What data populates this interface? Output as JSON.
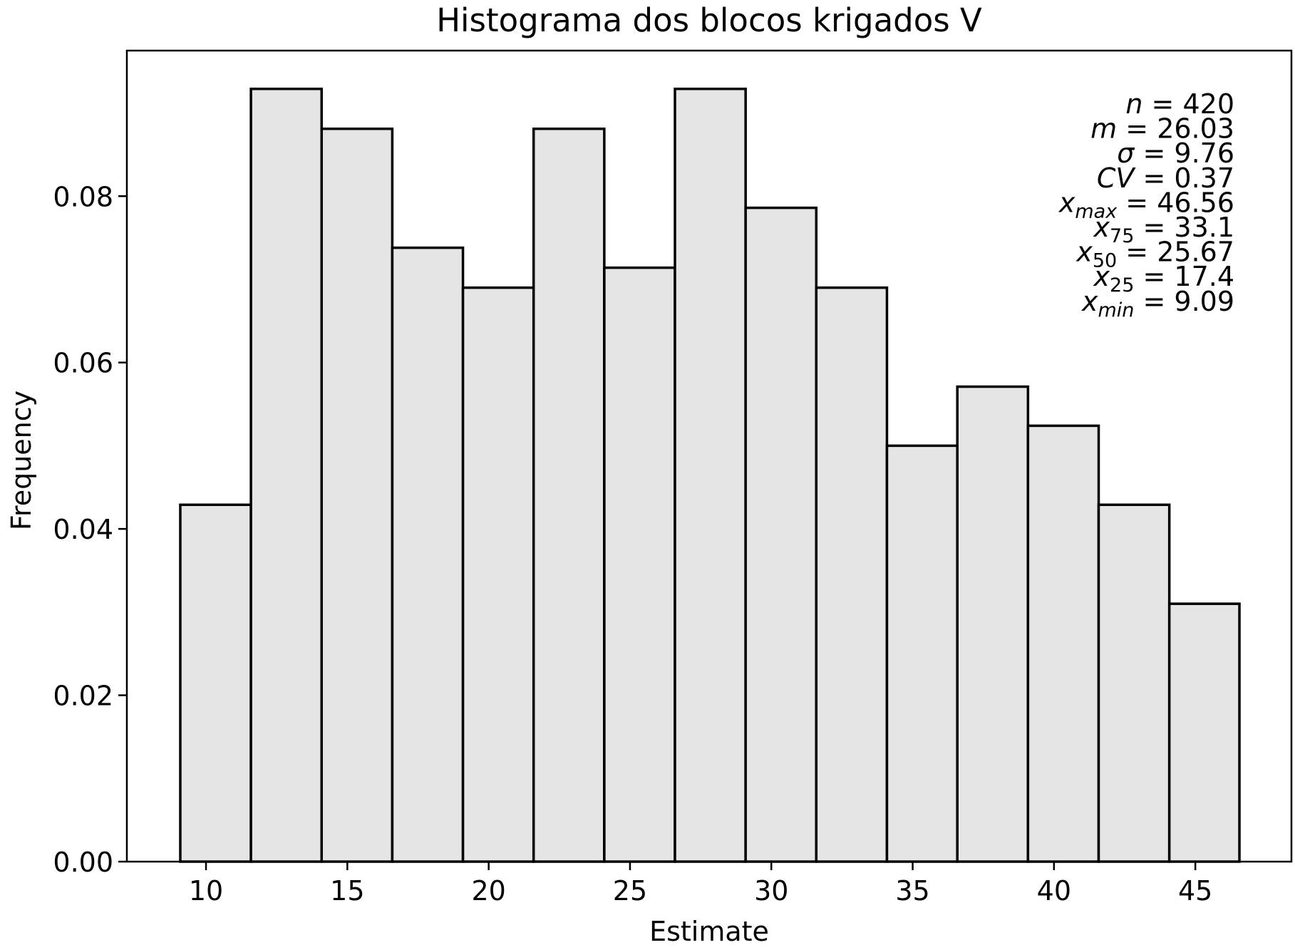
{
  "chart_data": {
    "type": "bar",
    "title": "Histograma dos blocos krigados V",
    "xlabel": "Estimate",
    "ylabel": "Frequency",
    "xlim": [
      7.2,
      48.4
    ],
    "ylim": [
      0,
      0.0975
    ],
    "xticks": [
      10,
      15,
      20,
      25,
      30,
      35,
      40,
      45
    ],
    "yticks": [
      0.0,
      0.02,
      0.04,
      0.06,
      0.08
    ],
    "xtick_labels": [
      "10",
      "15",
      "20",
      "25",
      "30",
      "35",
      "40",
      "45"
    ],
    "ytick_labels": [
      "0.00",
      "0.02",
      "0.04",
      "0.06",
      "0.08"
    ],
    "bin_edges": [
      9.09,
      11.59,
      14.09,
      16.59,
      19.09,
      21.59,
      24.09,
      26.59,
      29.09,
      31.59,
      34.09,
      36.58,
      39.08,
      41.58,
      44.08,
      46.56
    ],
    "values": [
      0.0429,
      0.0929,
      0.0881,
      0.0738,
      0.069,
      0.0881,
      0.0714,
      0.0929,
      0.0786,
      0.069,
      0.05,
      0.0571,
      0.0524,
      0.0429,
      0.031
    ],
    "bar_color": "#e5e5e5",
    "edge_color": "#000000",
    "grid": false,
    "stats": [
      {
        "sym": "n",
        "sub": "",
        "value": "420"
      },
      {
        "sym": "m",
        "sub": "",
        "value": "26.03"
      },
      {
        "sym": "σ",
        "sub": "",
        "value": "9.76"
      },
      {
        "sym": "CV",
        "sub": "",
        "value": "0.37"
      },
      {
        "sym": "x",
        "sub": "max",
        "value": "46.56"
      },
      {
        "sym": "x",
        "sub": "75",
        "value": "33.1"
      },
      {
        "sym": "x",
        "sub": "50",
        "value": "25.67"
      },
      {
        "sym": "x",
        "sub": "25",
        "value": "17.4"
      },
      {
        "sym": "x",
        "sub": "min",
        "value": "9.09"
      }
    ]
  }
}
